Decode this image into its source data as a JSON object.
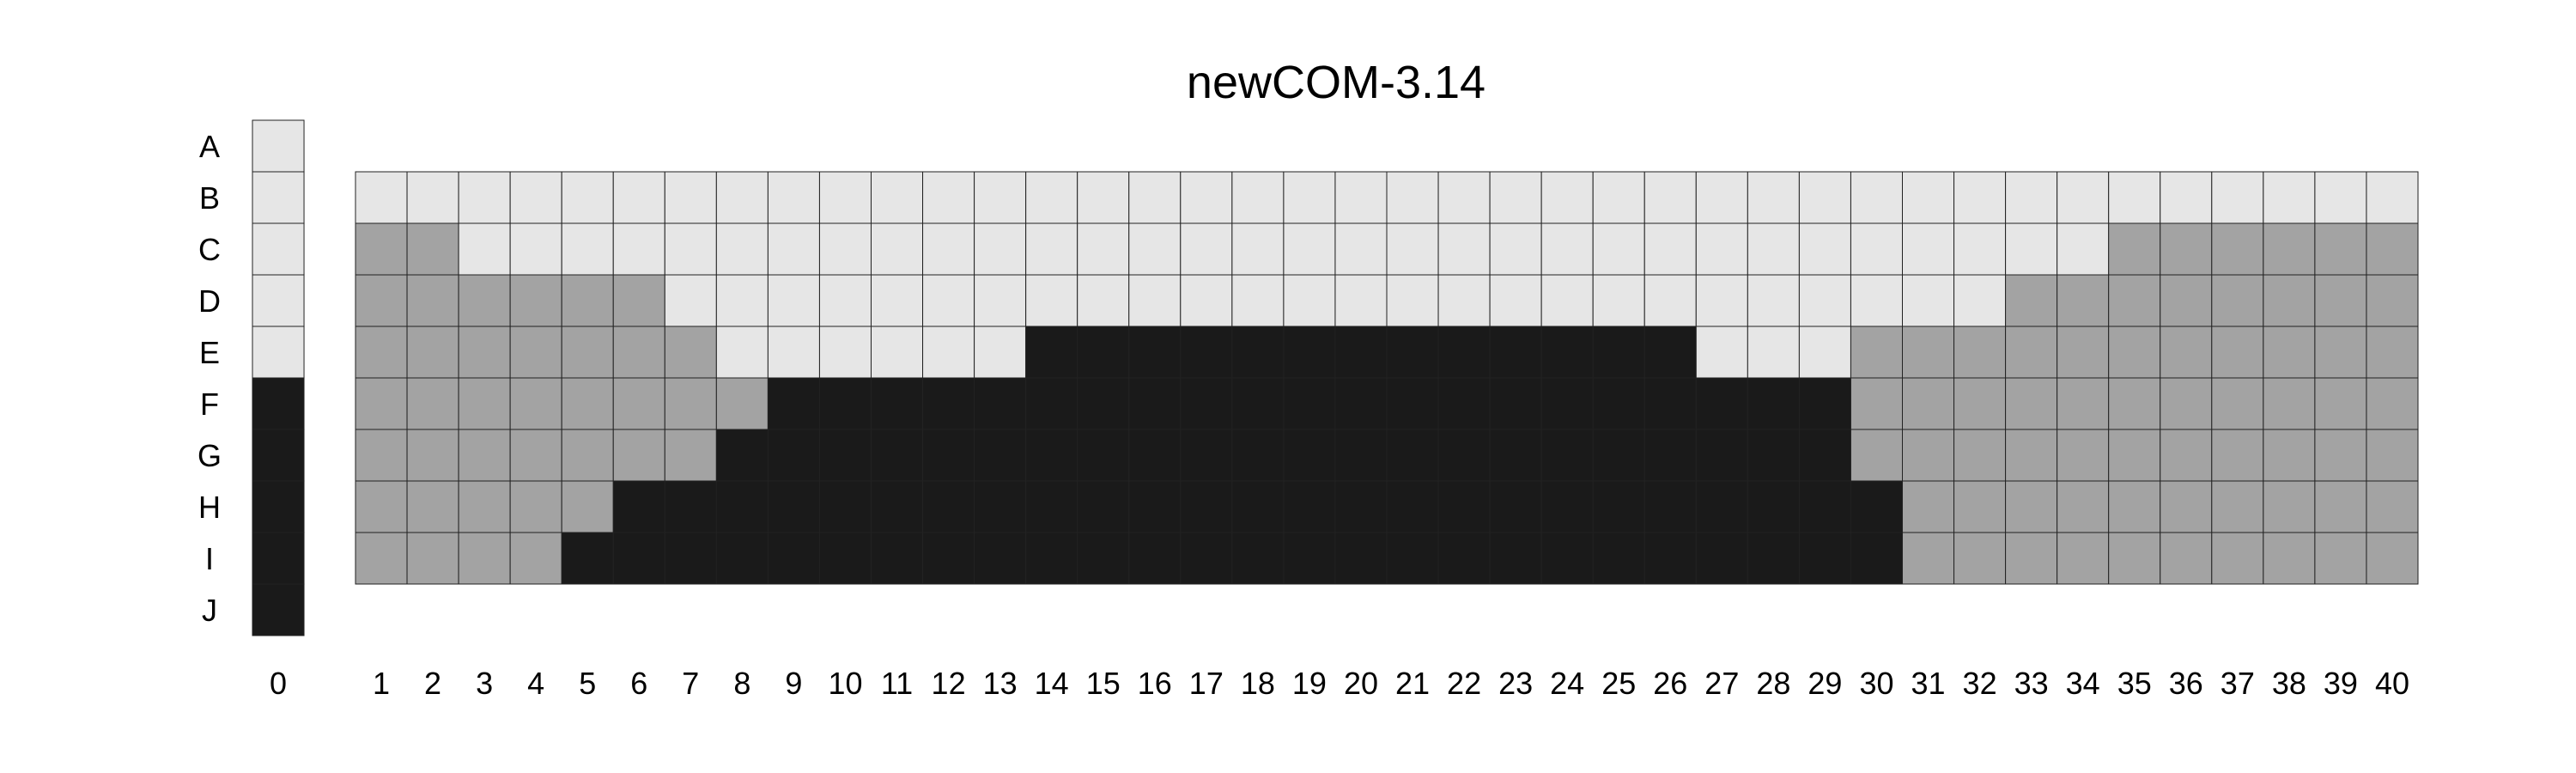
{
  "title": "newCOM-3.14",
  "palette": {
    "light": "#e6e6e6",
    "mid": "#a3a3a3",
    "dark": "#1a1a1a"
  },
  "rows": [
    "A",
    "B",
    "C",
    "D",
    "E",
    "F",
    "G",
    "H",
    "I",
    "J"
  ],
  "reference_column": {
    "label": "0",
    "cells": [
      "light",
      "light",
      "light",
      "light",
      "light",
      "dark",
      "dark",
      "dark",
      "dark",
      "dark"
    ]
  },
  "columns": [
    "1",
    "2",
    "3",
    "4",
    "5",
    "6",
    "7",
    "8",
    "9",
    "10",
    "11",
    "12",
    "13",
    "14",
    "15",
    "16",
    "17",
    "18",
    "19",
    "20",
    "21",
    "22",
    "23",
    "24",
    "25",
    "26",
    "27",
    "28",
    "29",
    "30",
    "31",
    "32",
    "33",
    "34",
    "35",
    "36",
    "37",
    "38",
    "39",
    "40"
  ],
  "grid_rows": [
    "B",
    "C",
    "D",
    "E",
    "F",
    "G",
    "H",
    "I"
  ],
  "grid": [
    {
      "row": "B",
      "runs": [
        {
          "tone": "light",
          "count": 40
        }
      ]
    },
    {
      "row": "C",
      "runs": [
        {
          "tone": "mid",
          "count": 2
        },
        {
          "tone": "light",
          "count": 32
        },
        {
          "tone": "mid",
          "count": 6
        }
      ]
    },
    {
      "row": "D",
      "runs": [
        {
          "tone": "mid",
          "count": 6
        },
        {
          "tone": "light",
          "count": 26
        },
        {
          "tone": "mid",
          "count": 8
        }
      ]
    },
    {
      "row": "E",
      "runs": [
        {
          "tone": "mid",
          "count": 7
        },
        {
          "tone": "light",
          "count": 6
        },
        {
          "tone": "dark",
          "count": 13
        },
        {
          "tone": "light",
          "count": 3
        },
        {
          "tone": "mid",
          "count": 11
        }
      ]
    },
    {
      "row": "F",
      "runs": [
        {
          "tone": "mid",
          "count": 8
        },
        {
          "tone": "dark",
          "count": 21
        },
        {
          "tone": "mid",
          "count": 11
        }
      ]
    },
    {
      "row": "G",
      "runs": [
        {
          "tone": "mid",
          "count": 7
        },
        {
          "tone": "dark",
          "count": 22
        },
        {
          "tone": "mid",
          "count": 11
        }
      ]
    },
    {
      "row": "H",
      "runs": [
        {
          "tone": "mid",
          "count": 5
        },
        {
          "tone": "dark",
          "count": 25
        },
        {
          "tone": "mid",
          "count": 10
        }
      ]
    },
    {
      "row": "I",
      "runs": [
        {
          "tone": "mid",
          "count": 4
        },
        {
          "tone": "dark",
          "count": 26
        },
        {
          "tone": "mid",
          "count": 10
        }
      ]
    }
  ]
}
